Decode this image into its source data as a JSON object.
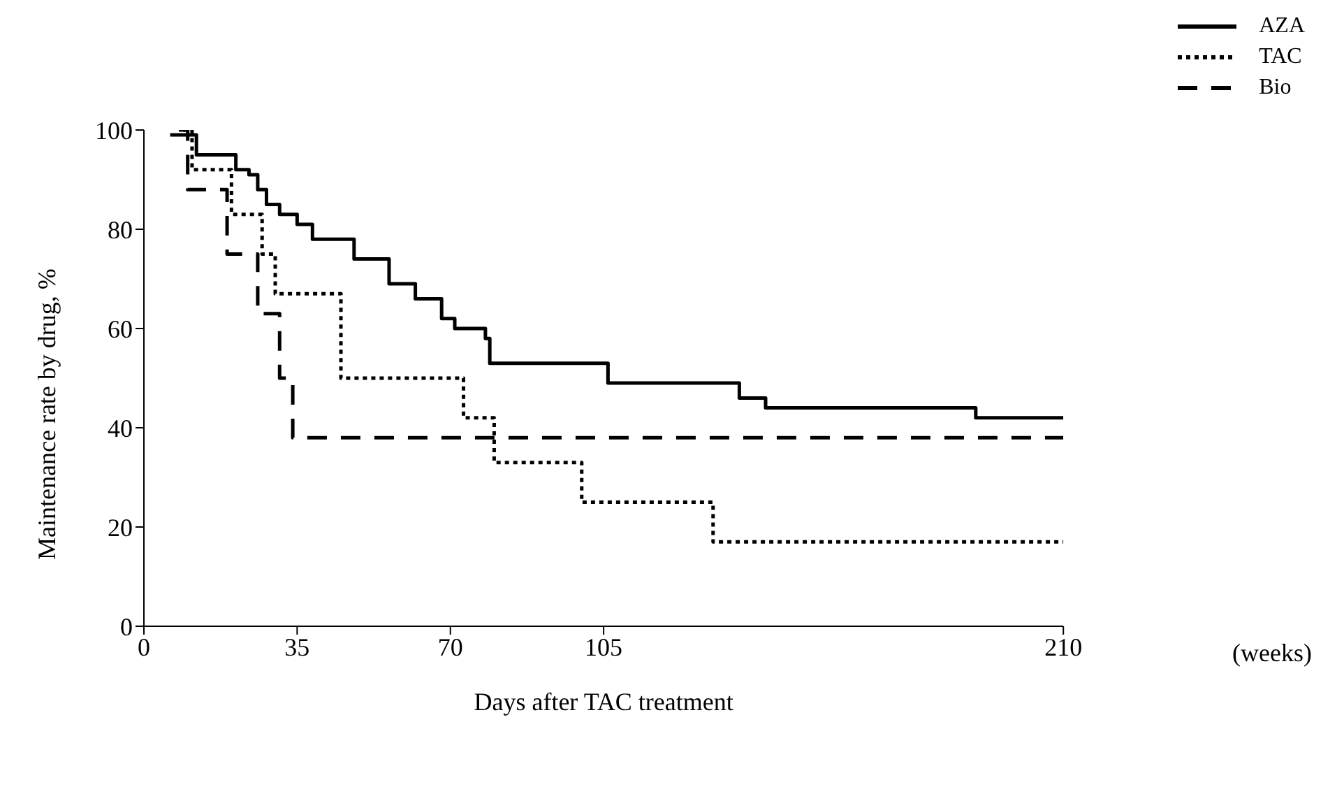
{
  "chart_data": {
    "type": "step",
    "xlabel": "Days after TAC treatment",
    "ylabel": "Maintenance rate by drug, %",
    "annotations": [
      "(weeks)"
    ],
    "series": [
      {
        "name": "AZA",
        "color": "#000000",
        "line_style": "solid",
        "x": [
          6,
          12,
          21,
          24,
          26,
          28,
          31,
          35,
          38.5,
          48,
          56,
          62,
          68,
          71,
          78,
          79,
          106,
          136,
          142,
          190,
          210
        ],
        "values": [
          99,
          95,
          92,
          91,
          88,
          85,
          83,
          81,
          78,
          74,
          69,
          66,
          62,
          60,
          58,
          53,
          49,
          46,
          44,
          42,
          42
        ]
      },
      {
        "name": "TAC",
        "color": "#000000",
        "line_style": "dotted",
        "x": [
          9,
          11,
          20,
          27,
          30,
          45,
          73,
          80,
          100,
          130,
          210
        ],
        "values": [
          100,
          92,
          83,
          75,
          67,
          50,
          42,
          33,
          25,
          17,
          17
        ]
      },
      {
        "name": "Bio",
        "color": "#000000",
        "line_style": "dashed",
        "x": [
          8,
          10,
          19,
          26,
          31,
          34,
          210
        ],
        "values": [
          100,
          88,
          75,
          63,
          50,
          38,
          38
        ]
      }
    ],
    "xlim": [
      0,
      210
    ],
    "xticks": [
      0,
      35,
      70,
      105,
      210
    ],
    "ylim": [
      0,
      100
    ],
    "yticks": [
      0,
      20,
      40,
      60,
      80,
      100
    ],
    "grid": false,
    "legend": "top right",
    "marker": "none"
  }
}
